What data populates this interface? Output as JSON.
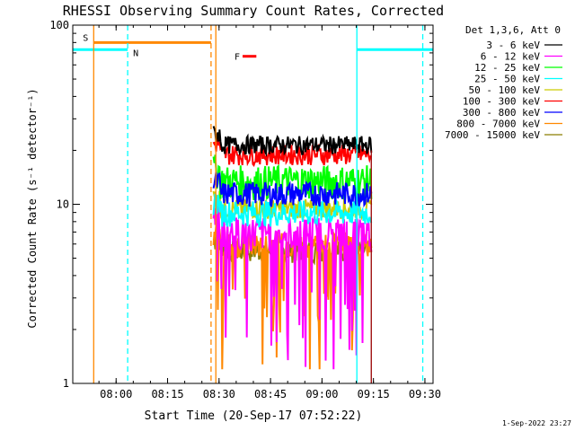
{
  "chart_data": {
    "type": "line",
    "title": "RHESSI Observing Summary Count Rates, Corrected",
    "xlabel": "Start Time (20-Sep-17 07:52:22)",
    "ylabel": "Corrected Count Rate (s⁻¹ detector⁻¹)",
    "yscale": "log",
    "ylim": [
      1,
      100
    ],
    "xlim_min": [
      -5,
      100
    ],
    "x_ticks": [
      {
        "label": "08:00",
        "min": 7.63
      },
      {
        "label": "08:15",
        "min": 22.63
      },
      {
        "label": "08:30",
        "min": 37.63
      },
      {
        "label": "08:45",
        "min": 52.63
      },
      {
        "label": "09:00",
        "min": 67.63
      },
      {
        "label": "09:15",
        "min": 82.63
      },
      {
        "label": "09:30",
        "min": 97.63
      }
    ],
    "y_ticks": [
      {
        "label": "1",
        "value": 1
      },
      {
        "label": "10",
        "value": 10
      },
      {
        "label": "100",
        "value": 100
      }
    ],
    "legend_title": "Det 1,3,6, Att 0",
    "legend_position": "right",
    "series": [
      {
        "name": "3 - 6 keV",
        "color": "#000000",
        "level": 21.5,
        "jitter": 2.5,
        "drop": 0
      },
      {
        "name": "6 - 12 keV",
        "color": "#ff00ff",
        "level": 7.0,
        "jitter": 1.6,
        "drop": 3.0
      },
      {
        "name": "12 - 25 keV",
        "color": "#00ff00",
        "level": 13.5,
        "jitter": 3.0,
        "drop": 0
      },
      {
        "name": "25 - 50 keV",
        "color": "#00ffff",
        "level": 9.0,
        "jitter": 1.5,
        "drop": 0
      },
      {
        "name": "50 - 100 keV",
        "color": "#cccc00",
        "level": 9.5,
        "jitter": 1.2,
        "drop": 0
      },
      {
        "name": "100 - 300 keV",
        "color": "#ff0000",
        "level": 19.0,
        "jitter": 2.5,
        "drop": 0
      },
      {
        "name": "300 - 800 keV",
        "color": "#0000ff",
        "level": 11.5,
        "jitter": 1.8,
        "drop": 0
      },
      {
        "name": "800 - 7000 keV",
        "color": "#ff8800",
        "level": 6.0,
        "jitter": 1.0,
        "drop": 2.5
      },
      {
        "name": "7000 - 15000 keV",
        "color": "#8b7d00",
        "level": 5.5,
        "jitter": 0.8,
        "drop": 0
      }
    ],
    "data_window_min": [
      36,
      82
    ],
    "markers": [
      {
        "label": "S",
        "color": "#ff8800",
        "start_min": 1.1,
        "end_min": 35.3,
        "y": 80
      },
      {
        "label": "N",
        "color": "#00ffff",
        "start_min": -5,
        "end_min": 11.0,
        "y": 73
      },
      {
        "label": "N",
        "color": "#00ffff",
        "start_min": 77.8,
        "end_min": 100,
        "y": 73
      },
      {
        "label": "F",
        "color": "#ff0000",
        "start_min": 44.5,
        "end_min": 48.5,
        "y": 67
      }
    ],
    "vlines": [
      {
        "min": 1.1,
        "color": "#ff8800",
        "style": "solid"
      },
      {
        "min": 11.0,
        "color": "#00ffff",
        "style": "dashed"
      },
      {
        "min": 35.3,
        "color": "#ff8800",
        "style": "dashed"
      },
      {
        "min": 36.7,
        "color": "#ff8800",
        "style": "solid"
      },
      {
        "min": 77.8,
        "color": "#00ffff",
        "style": "solid"
      },
      {
        "min": 97.0,
        "color": "#00ffff",
        "style": "dashed"
      }
    ],
    "footer_date": "1-Sep-2022 23:27"
  }
}
